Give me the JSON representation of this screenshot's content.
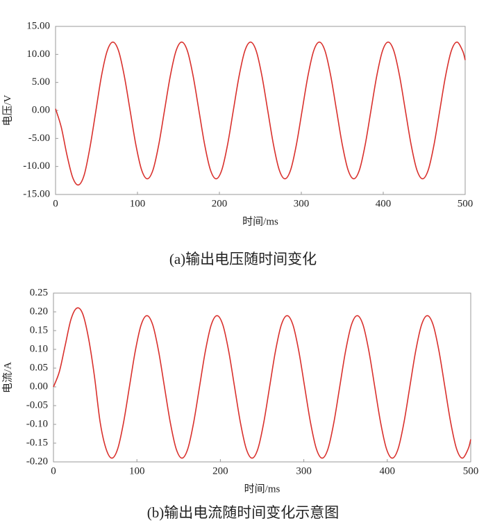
{
  "chart_data": [
    {
      "type": "line",
      "caption": "(a)输出电压随时间变化",
      "xlabel": "时间/ms",
      "ylabel": "电压/V",
      "x": [
        0,
        7,
        14,
        21,
        28,
        35,
        42,
        49,
        56,
        63,
        70,
        77,
        84,
        91,
        98,
        105,
        112,
        119,
        126,
        133,
        140,
        147,
        154,
        161,
        168,
        175,
        182,
        189,
        196,
        203,
        210,
        217,
        224,
        231,
        238,
        245,
        252,
        259,
        266,
        273,
        280,
        287,
        294,
        301,
        308,
        315,
        322,
        329,
        336,
        343,
        350,
        357,
        364,
        371,
        378,
        385,
        392,
        399,
        406,
        413,
        420,
        427,
        434,
        441,
        448,
        455,
        462,
        469,
        476,
        483,
        490,
        497,
        500
      ],
      "series": [
        {
          "color": "#d9302c",
          "values": [
            0.3,
            -3,
            -8,
            -12,
            -13.3,
            -11.5,
            -6.6,
            -0.3,
            6.1,
            10.6,
            12.2,
            10.6,
            6.1,
            0,
            -6.1,
            -10.6,
            -12.2,
            -10.6,
            -6.1,
            0,
            6.1,
            10.6,
            12.2,
            10.6,
            6.1,
            0,
            -6.1,
            -10.6,
            -12.2,
            -10.6,
            -6.1,
            0,
            6.1,
            10.6,
            12.2,
            10.6,
            6.1,
            0,
            -6.1,
            -10.6,
            -12.2,
            -10.6,
            -6.1,
            0,
            6.1,
            10.6,
            12.2,
            10.6,
            6.1,
            0,
            -6.1,
            -10.6,
            -12.2,
            -10.6,
            -6.1,
            0,
            6.1,
            10.6,
            12.2,
            10.6,
            6.1,
            0,
            -6.1,
            -10.6,
            -12.2,
            -10.6,
            -6.1,
            0,
            6.1,
            10.6,
            12.2,
            10.6,
            9
          ]
        }
      ],
      "xlim": [
        0,
        500
      ],
      "xticks": [
        0,
        100,
        200,
        300,
        400,
        500
      ],
      "ylim": [
        -15,
        15
      ],
      "yticks": [
        {
          "value": -15,
          "label": "-15.00"
        },
        {
          "value": -10,
          "label": "-10.00"
        },
        {
          "value": -5,
          "label": "-5.00"
        },
        {
          "value": 0,
          "label": "0.00"
        },
        {
          "value": 5,
          "label": "5.00"
        },
        {
          "value": 10,
          "label": "10.00"
        },
        {
          "value": 15,
          "label": "15.00"
        }
      ]
    },
    {
      "type": "line",
      "caption": "(b)输出电流随时间变化示意图",
      "xlabel": "时间/ms",
      "ylabel": "电流/A",
      "x": [
        0,
        7,
        14,
        21,
        28,
        35,
        42,
        49,
        56,
        63,
        70,
        77,
        84,
        91,
        98,
        105,
        112,
        119,
        126,
        133,
        140,
        147,
        154,
        161,
        168,
        175,
        182,
        189,
        196,
        203,
        210,
        217,
        224,
        231,
        238,
        245,
        252,
        259,
        266,
        273,
        280,
        287,
        294,
        301,
        308,
        315,
        322,
        329,
        336,
        343,
        350,
        357,
        364,
        371,
        378,
        385,
        392,
        399,
        406,
        413,
        420,
        427,
        434,
        441,
        448,
        455,
        462,
        469,
        476,
        483,
        490,
        497,
        500
      ],
      "series": [
        {
          "color": "#d9302c",
          "values": [
            0,
            0.04,
            0.11,
            0.18,
            0.21,
            0.195,
            0.13,
            0.03,
            -0.095,
            -0.165,
            -0.19,
            -0.165,
            -0.095,
            0,
            0.095,
            0.165,
            0.19,
            0.165,
            0.095,
            0,
            -0.095,
            -0.165,
            -0.19,
            -0.165,
            -0.095,
            0,
            0.095,
            0.165,
            0.19,
            0.165,
            0.095,
            0,
            -0.095,
            -0.165,
            -0.19,
            -0.165,
            -0.095,
            0,
            0.095,
            0.165,
            0.19,
            0.165,
            0.095,
            0,
            -0.095,
            -0.165,
            -0.19,
            -0.165,
            -0.095,
            0,
            0.095,
            0.165,
            0.19,
            0.165,
            0.095,
            0,
            -0.095,
            -0.165,
            -0.19,
            -0.165,
            -0.095,
            0,
            0.095,
            0.165,
            0.19,
            0.165,
            0.095,
            0,
            -0.095,
            -0.165,
            -0.19,
            -0.165,
            -0.14
          ]
        }
      ],
      "xlim": [
        0,
        500
      ],
      "xticks": [
        0,
        100,
        200,
        300,
        400,
        500
      ],
      "ylim": [
        -0.2,
        0.25
      ],
      "yticks": [
        {
          "value": -0.2,
          "label": "-0.20"
        },
        -0.15,
        {
          "value": -0.1,
          "label": "-0.10"
        },
        -0.05,
        {
          "value": 0,
          "label": "0.00"
        },
        0.05,
        {
          "value": 0.1,
          "label": "0.10"
        },
        0.15,
        {
          "value": 0.2,
          "label": "0.20"
        },
        0.25
      ]
    }
  ]
}
